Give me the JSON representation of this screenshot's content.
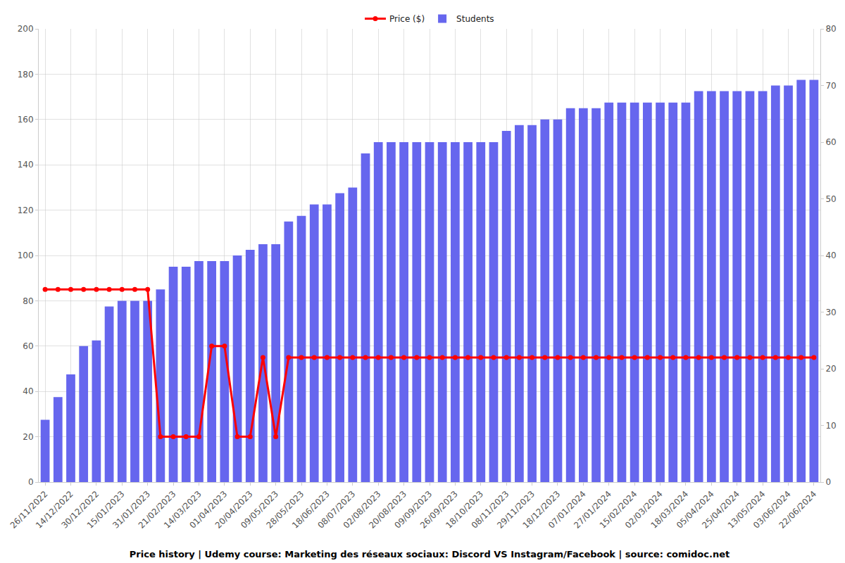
{
  "chart_data": {
    "type": "bar",
    "title": "Price history | Udemy course: Marketing des réseaux sociaux: Discord VS Instagram/Facebook | source: comidoc.net",
    "categories": [
      "26/11/2022",
      null,
      "14/12/2022",
      null,
      "30/12/2022",
      null,
      "15/01/2023",
      null,
      "31/01/2023",
      null,
      "21/02/2023",
      null,
      "14/03/2023",
      null,
      "01/04/2023",
      null,
      "20/04/2023",
      null,
      "09/05/2023",
      null,
      "28/05/2023",
      null,
      "18/06/2023",
      null,
      "08/07/2023",
      null,
      "02/08/2023",
      null,
      "20/08/2023",
      null,
      "09/09/2023",
      null,
      "26/09/2023",
      null,
      "18/10/2023",
      null,
      "08/11/2023",
      null,
      "29/11/2023",
      null,
      "18/12/2023",
      null,
      "07/01/2024",
      null,
      "27/01/2024",
      null,
      "15/02/2024",
      null,
      "02/03/2024",
      null,
      "18/03/2024",
      null,
      "05/04/2024",
      null,
      "25/04/2024",
      null,
      "13/05/2024",
      null,
      "03/06/2024",
      null,
      "22/06/2024"
    ],
    "series": [
      {
        "name": "Price ($)",
        "type": "line",
        "color": "#ff0000",
        "marker": "circle",
        "line_style": "solid",
        "values": [
          85,
          85,
          85,
          85,
          85,
          85,
          85,
          85,
          85,
          20,
          20,
          20,
          20,
          60,
          60,
          20,
          20,
          55,
          20,
          55,
          55,
          55,
          55,
          55,
          55,
          55,
          55,
          55,
          55,
          55,
          55,
          55,
          55,
          55,
          55,
          55,
          55,
          55,
          55,
          55,
          55,
          55,
          55,
          55,
          55,
          55,
          55,
          55,
          55,
          55,
          55,
          55,
          55,
          55,
          55,
          55,
          55,
          55,
          55,
          55,
          55
        ]
      },
      {
        "name": "Students",
        "type": "bar",
        "axis": "y2",
        "color": "#6666ee",
        "values": [
          11,
          15,
          19,
          24,
          25,
          31,
          32,
          32,
          32,
          34,
          38,
          38,
          39,
          39,
          39,
          40,
          41,
          42,
          42,
          46,
          47,
          49,
          49,
          51,
          52,
          58,
          60,
          60,
          60,
          60,
          60,
          60,
          60,
          60,
          60,
          60,
          62,
          63,
          63,
          64,
          64,
          66,
          66,
          66,
          67,
          67,
          67,
          67,
          67,
          67,
          67,
          69,
          69,
          69,
          69,
          69,
          69,
          70,
          70,
          71,
          71
        ]
      }
    ],
    "ylim": [
      0,
      200
    ],
    "yticks": [
      0,
      20,
      40,
      60,
      80,
      100,
      120,
      140,
      160,
      180,
      200
    ],
    "y2lim": [
      0,
      80
    ],
    "y2ticks": [
      0,
      10,
      20,
      30,
      40,
      50,
      60,
      70,
      80
    ],
    "grid": true,
    "legend": "top"
  }
}
